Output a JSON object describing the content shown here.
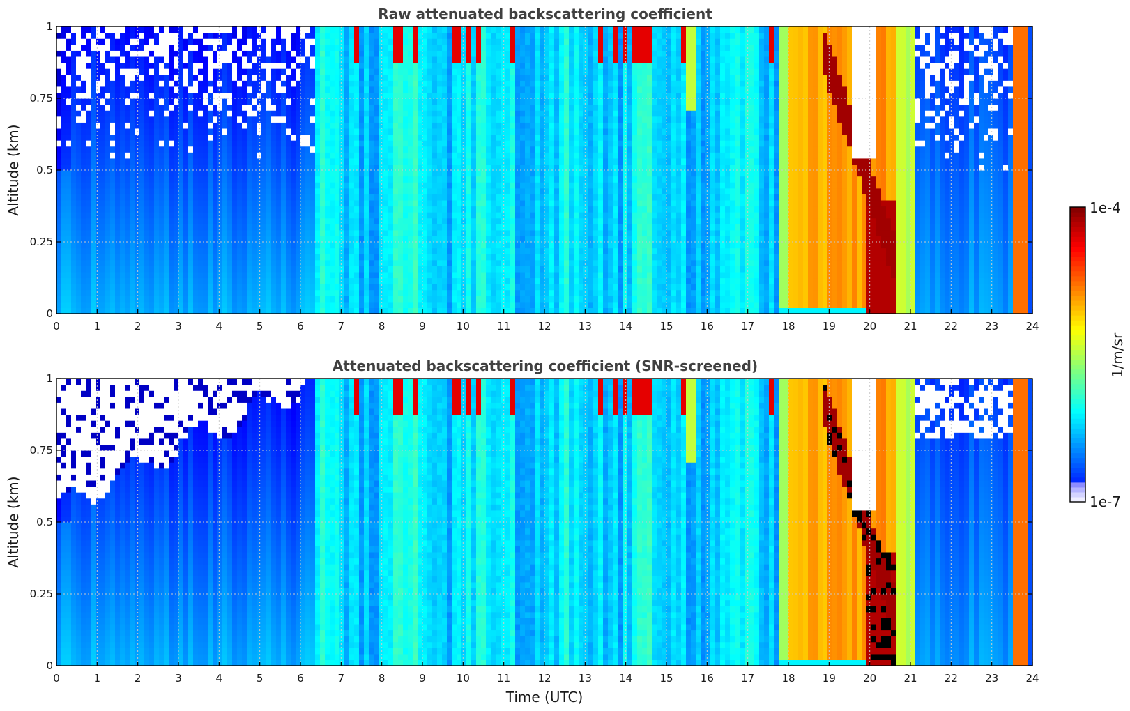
{
  "chart_data": [
    {
      "type": "heatmap",
      "title": "Raw attenuated backscattering coefficient",
      "xlabel": "",
      "ylabel": "Altitude (km)",
      "xlim": [
        0,
        24
      ],
      "ylim": [
        0,
        1
      ],
      "xticks": [
        "0",
        "1",
        "2",
        "3",
        "4",
        "5",
        "6",
        "7",
        "8",
        "9",
        "10",
        "11",
        "12",
        "13",
        "14",
        "15",
        "16",
        "17",
        "18",
        "19",
        "20",
        "21",
        "22",
        "23",
        "24"
      ],
      "yticks": [
        "0",
        "0.25",
        "0.5",
        "0.75",
        "1"
      ],
      "grid": true,
      "time_segments": [
        {
          "t": [
            0,
            6.4
          ],
          "description_level": "low",
          "log_value_range": [
            -7,
            -6
          ]
        },
        {
          "t": [
            6.4,
            17.8
          ],
          "log_value_range": [
            -6.3,
            -5.5
          ]
        },
        {
          "t": [
            17.8,
            20.0
          ],
          "log_value_range": [
            -5.0,
            -4.5
          ]
        },
        {
          "t": [
            20.0,
            20.6
          ],
          "log_value_range": [
            -4.3,
            -4.0
          ]
        },
        {
          "t": [
            20.6,
            21.1
          ],
          "log_value_range": [
            -5.2,
            -4.8
          ]
        },
        {
          "t": [
            21.1,
            23.5
          ],
          "log_value_range": [
            -7,
            -6
          ]
        },
        {
          "t": [
            23.5,
            23.8
          ],
          "log_value_range": [
            -5,
            -4.5
          ]
        }
      ]
    },
    {
      "type": "heatmap",
      "title": "Attenuated backscattering coefficient (SNR-screened)",
      "xlabel": "Time (UTC)",
      "ylabel": "Altitude (km)",
      "xlim": [
        0,
        24
      ],
      "ylim": [
        0,
        1
      ],
      "xticks": [
        "0",
        "1",
        "2",
        "3",
        "4",
        "5",
        "6",
        "7",
        "8",
        "9",
        "10",
        "11",
        "12",
        "13",
        "14",
        "15",
        "16",
        "17",
        "18",
        "19",
        "20",
        "21",
        "22",
        "23",
        "24"
      ],
      "yticks": [
        "0",
        "0.25",
        "0.5",
        "0.75",
        "1"
      ],
      "grid": true
    }
  ],
  "colorbar": {
    "label": "1/m/sr",
    "min_label": "1e-7",
    "max_label": "1e-4",
    "min_value": 1e-07,
    "max_value": 0.0001,
    "scale": "log",
    "colormap": "jet"
  }
}
